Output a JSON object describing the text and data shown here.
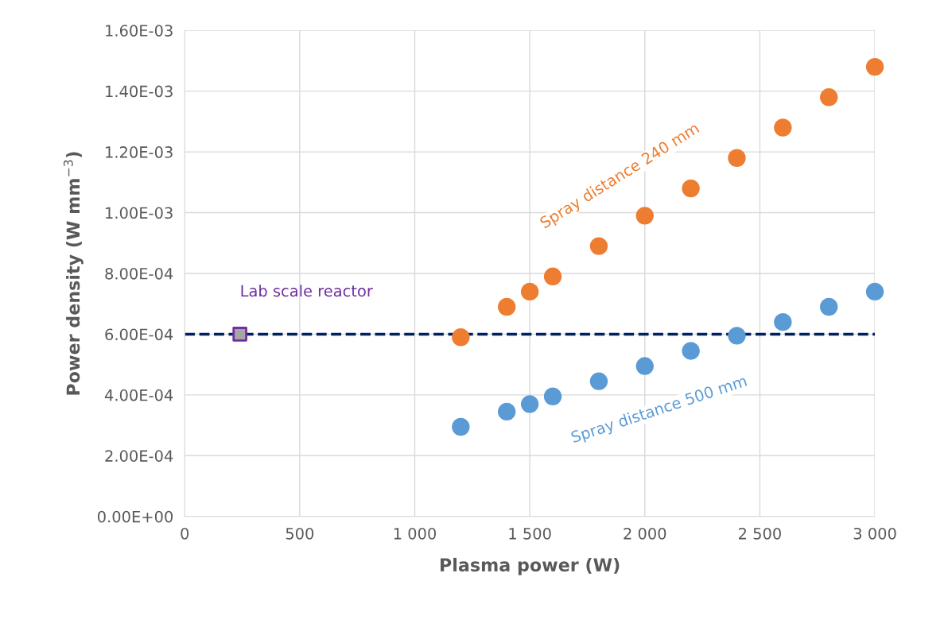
{
  "chart_data": {
    "type": "scatter",
    "xlabel": "Plasma power (W)",
    "ylabel": "Power density (W mm$^{−3}$)",
    "series": [
      {
        "name": "Spray distance 240 mm",
        "color": "#ed7d31",
        "marker": "circle",
        "x": [
          1200,
          1400,
          1500,
          1600,
          1800,
          2000,
          2200,
          2400,
          2600,
          2800,
          3000
        ],
        "values": [
          0.00059,
          0.00069,
          0.00074,
          0.00079,
          0.00089,
          0.00099,
          0.00108,
          0.00118,
          0.00128,
          0.00138,
          0.00148
        ]
      },
      {
        "name": "Spray distance 500 mm",
        "color": "#5b9bd5",
        "marker": "circle",
        "x": [
          1200,
          1400,
          1500,
          1600,
          1800,
          2000,
          2200,
          2400,
          2600,
          2800,
          3000
        ],
        "values": [
          0.000295,
          0.000345,
          0.00037,
          0.000395,
          0.000445,
          0.000495,
          0.000545,
          0.000595,
          0.00064,
          0.00069,
          0.00074
        ]
      },
      {
        "name": "Lab scale reactor",
        "color": "#7030a0",
        "marker": "square",
        "x": [
          240
        ],
        "values": [
          0.0006
        ]
      }
    ],
    "ref_lines": [
      {
        "axis": "y",
        "value": 0.0006,
        "color": "#002060",
        "line_style": "dashed"
      }
    ],
    "xlim": [
      0,
      3000
    ],
    "ylim": [
      0,
      0.0016
    ],
    "xticks": [
      0,
      500,
      {
        "value": 1000,
        "label": "1 000"
      },
      {
        "value": 1500,
        "label": "1 500"
      },
      {
        "value": 2000,
        "label": "2 000"
      },
      {
        "value": 2500,
        "label": "2 500"
      },
      {
        "value": 3000,
        "label": "3 000"
      }
    ],
    "yticks": [
      {
        "value": 0,
        "label": "0.00E+00"
      },
      {
        "value": 0.0002,
        "label": "2.00E-04"
      },
      {
        "value": 0.0004,
        "label": "4.00E-04"
      },
      {
        "value": 0.0006,
        "label": "6.00E-04"
      },
      {
        "value": 0.0008,
        "label": "8.00E-04"
      },
      {
        "value": 0.001,
        "label": "1.00E-03"
      },
      {
        "value": 0.0012,
        "label": "1.20E-03"
      },
      {
        "value": 0.0014,
        "label": "1.40E-03"
      },
      {
        "value": 0.0016,
        "label": "1.60E-03"
      }
    ],
    "grid": true,
    "legend": false
  }
}
